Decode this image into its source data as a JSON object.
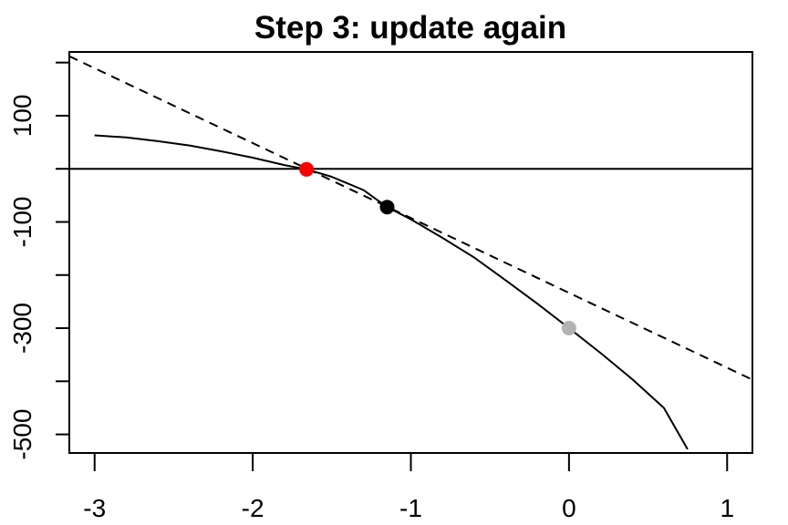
{
  "chart_data": {
    "type": "line",
    "title": "Step 3: update again",
    "xlabel": "",
    "ylabel": "",
    "xlim": [
      -3.16,
      1.16
    ],
    "ylim": [
      -535,
      220
    ],
    "x_ticks": [
      -3,
      -2,
      -1,
      0,
      1
    ],
    "x_tick_labels": [
      "-3",
      "-2",
      "-1",
      "0",
      "1"
    ],
    "y_ticks": [
      -500,
      -400,
      -300,
      -200,
      -100,
      0,
      100,
      200
    ],
    "y_tick_labels": [
      "-500",
      "",
      "-300",
      "",
      "-100",
      "",
      "100",
      ""
    ],
    "grid": false,
    "series": [
      {
        "kind": "curve",
        "style": "solid",
        "color": "#000000",
        "x": [
          -3.0,
          -2.8,
          -2.6,
          -2.4,
          -2.2,
          -2.0,
          -1.8,
          -1.66,
          -1.5,
          -1.3,
          -1.15,
          -1.0,
          -0.8,
          -0.6,
          -0.4,
          -0.2,
          0.0,
          0.2,
          0.4,
          0.6,
          0.75
        ],
        "y": [
          63,
          59,
          52,
          44,
          33,
          21,
          7,
          -1,
          -15,
          -40,
          -72,
          -95,
          -130,
          -167,
          -210,
          -254,
          -300,
          -347,
          -396,
          -450,
          -528
        ]
      },
      {
        "kind": "tangent",
        "style": "dashed",
        "color": "#000000",
        "x": [
          -3.16,
          1.16
        ],
        "y": [
          212,
          -397
        ]
      },
      {
        "kind": "hline",
        "style": "solid",
        "color": "#000000",
        "x": [
          -3.16,
          1.16
        ],
        "y": [
          0,
          0
        ]
      }
    ],
    "points": [
      {
        "x": 0.0,
        "y": -300,
        "color": "#b3b3b3"
      },
      {
        "x": -1.15,
        "y": -72,
        "color": "#000000"
      },
      {
        "x": -1.66,
        "y": -1,
        "color": "#ff0000"
      }
    ]
  }
}
